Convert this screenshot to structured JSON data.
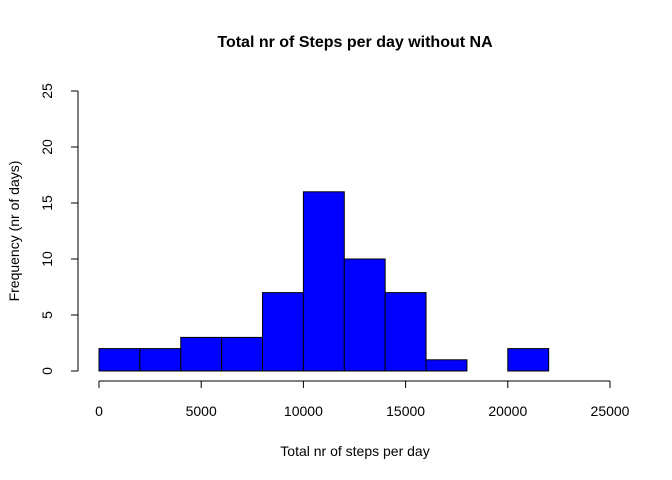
{
  "chart_data": {
    "type": "bar",
    "title": "Total nr of Steps per day without NA",
    "xlabel": "Total nr of steps per day",
    "ylabel": "Frequency (nr of days)",
    "bin_edges": [
      0,
      2000,
      4000,
      6000,
      8000,
      10000,
      12000,
      14000,
      16000,
      18000,
      20000,
      22000
    ],
    "values": [
      2,
      2,
      3,
      3,
      7,
      16,
      10,
      7,
      1,
      0,
      2
    ],
    "xlim": [
      0,
      25000
    ],
    "ylim": [
      0,
      25
    ],
    "x_ticks": [
      "0",
      "5000",
      "10000",
      "15000",
      "20000",
      "25000"
    ],
    "y_ticks": [
      "0",
      "5",
      "10",
      "15",
      "20",
      "25"
    ],
    "bar_color": "#0000ff",
    "grid": false
  }
}
